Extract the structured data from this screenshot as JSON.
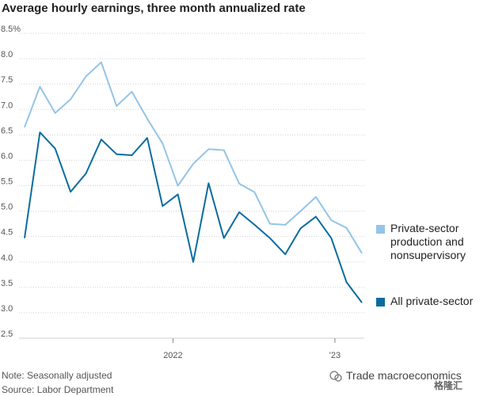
{
  "chart_data": {
    "type": "line",
    "title": "Average hourly earnings, three month annualized rate",
    "ylim": [
      2.5,
      8.5
    ],
    "yticks": [
      "8.5%",
      "8.0",
      "7.5",
      "7.0",
      "6.5",
      "6.0",
      "5.5",
      "5.0",
      "4.5",
      "4.0",
      "3.5",
      "3.0",
      "2.5"
    ],
    "xticks": [
      {
        "label": "2022",
        "month": 12
      },
      {
        "label": "'23",
        "month": 24
      }
    ],
    "x_month_start": 1,
    "x_month_end": 26,
    "legend_placement": "right",
    "grid": true,
    "series": [
      {
        "name": "Private-sector production and nonsupervisory",
        "color": "#95c4e6",
        "values": [
          6.65,
          7.45,
          6.93,
          7.2,
          7.65,
          7.93,
          7.07,
          7.35,
          6.82,
          6.33,
          5.5,
          5.93,
          6.22,
          6.2,
          5.54,
          5.37,
          4.75,
          4.73,
          5.0,
          5.28,
          4.82,
          4.67,
          4.17
        ]
      },
      {
        "name": "All private-sector",
        "color": "#0a6c9e",
        "values": [
          4.47,
          6.55,
          6.23,
          5.38,
          5.74,
          6.41,
          6.12,
          6.1,
          6.44,
          5.1,
          5.33,
          4.0,
          5.55,
          4.47,
          4.98,
          4.73,
          4.47,
          4.15,
          4.66,
          4.89,
          4.47,
          3.6,
          3.2
        ]
      }
    ]
  },
  "legend": [
    {
      "label": "Private-sector production and nonsupervisory",
      "color": "#95c4e6"
    },
    {
      "label": "All private-sector",
      "color": "#0a6c9e"
    }
  ],
  "footer": {
    "note": "Note: Seasonally adjusted",
    "source": "Source: Labor Department"
  },
  "watermark": {
    "text": "Trade macroeconomics",
    "logo": "格隆汇"
  }
}
